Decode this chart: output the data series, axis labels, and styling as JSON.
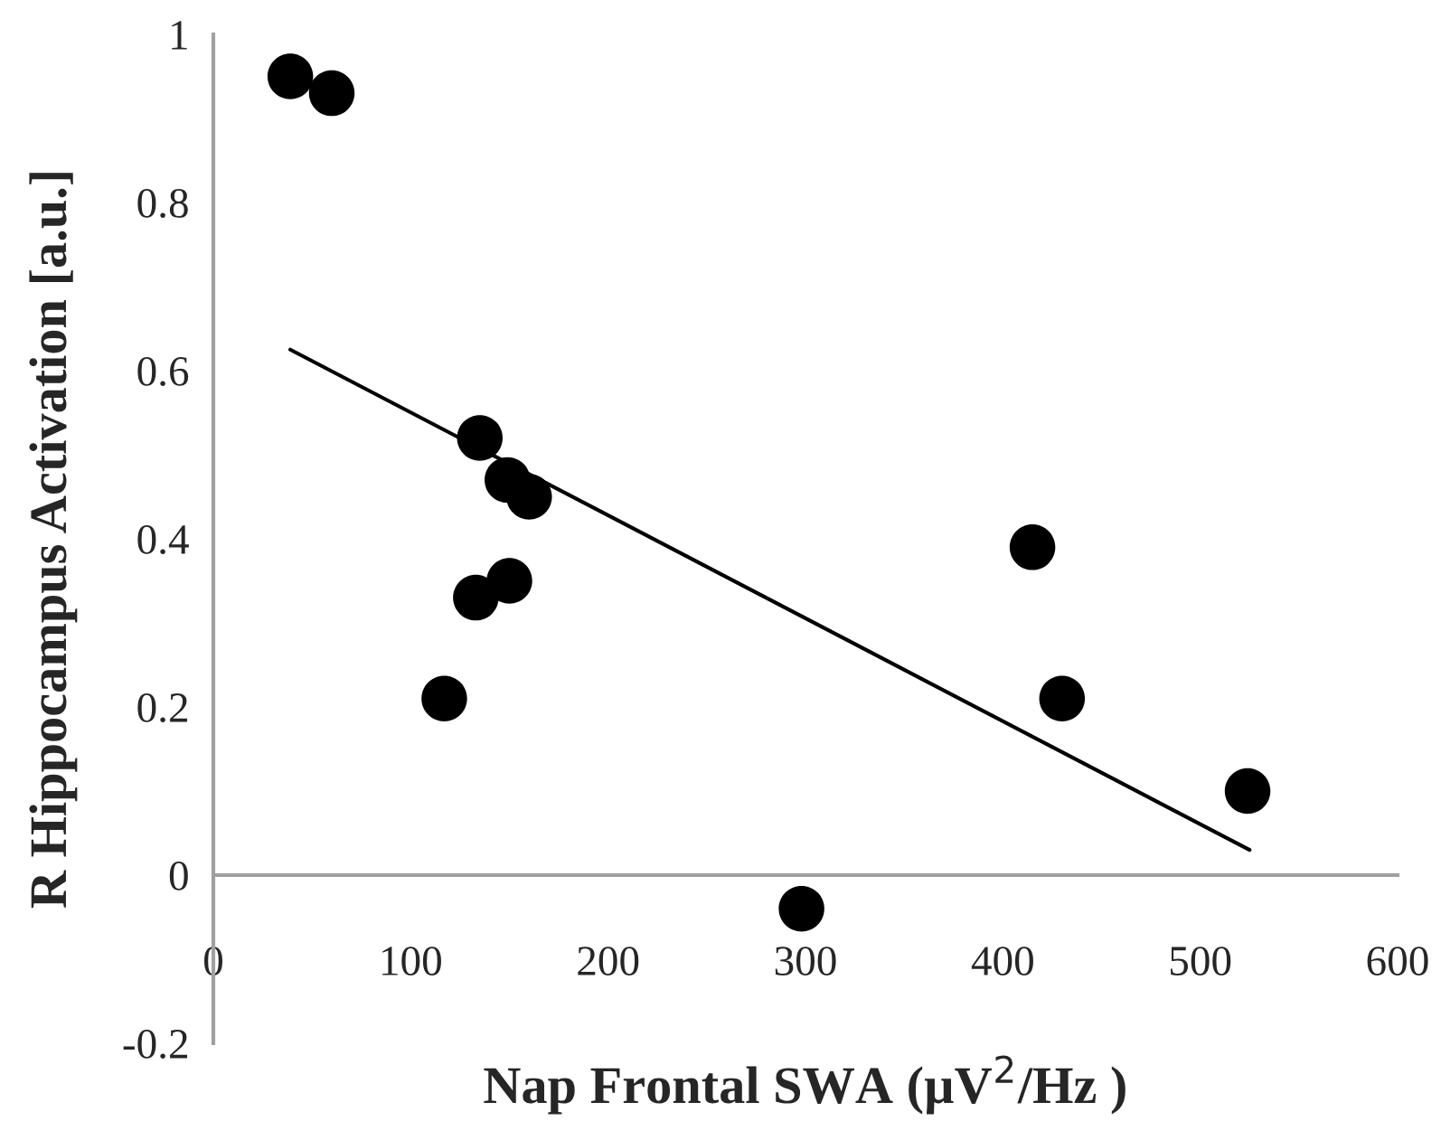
{
  "chart_data": {
    "type": "scatter",
    "xlabel": "Nap Frontal SWA (µV$^{2}$/Hz )",
    "ylabel": "R Hippocampus Activation [a.u.]",
    "xlim": [
      0,
      600
    ],
    "xticks": [
      0,
      100,
      200,
      300,
      400,
      500,
      600
    ],
    "ylim": [
      -0.2,
      1
    ],
    "yticks": [
      -0.2,
      0,
      0.2,
      0.4,
      0.6,
      0.8,
      1
    ],
    "grid": false,
    "legend": false,
    "marker": "circle",
    "series": [
      {
        "color": "#000000",
        "x": [
          39,
          60,
          135,
          149,
          160,
          150,
          133,
          117,
          415,
          430,
          524,
          298
        ],
        "values": [
          0.95,
          0.93,
          0.52,
          0.47,
          0.45,
          0.35,
          0.33,
          0.21,
          0.39,
          0.21,
          0.1,
          -0.04
        ]
      },
      {
        "type": "line",
        "marker": "none",
        "color": "#000000",
        "x": [
          39,
          525
        ],
        "values": [
          0.625,
          0.03
        ]
      }
    ]
  }
}
